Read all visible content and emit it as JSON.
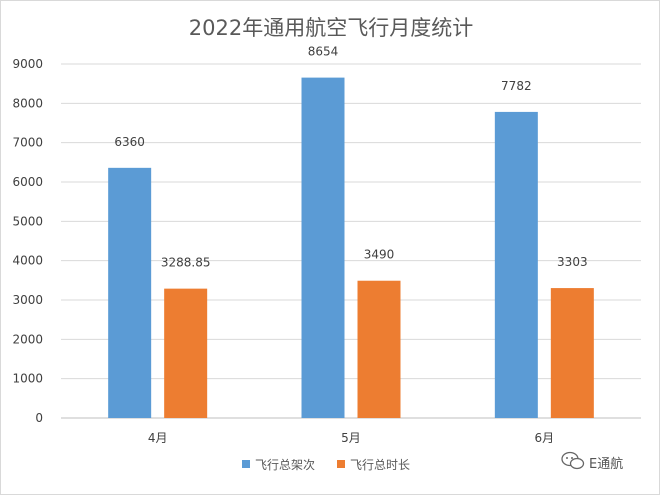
{
  "chart_data": {
    "type": "bar",
    "title": "2022年通用航空飞行月度统计",
    "categories": [
      "4月",
      "5月",
      "6月"
    ],
    "series": [
      {
        "name": "飞行总架次",
        "values": [
          6360,
          8654,
          7782
        ],
        "labels": [
          "6360",
          "8654",
          "7782"
        ],
        "color": "#5b9bd5"
      },
      {
        "name": "飞行总时长",
        "values": [
          3288.85,
          3490,
          3303
        ],
        "labels": [
          "3288.85",
          "3490",
          "3303"
        ],
        "color": "#ed7d31"
      }
    ],
    "ylim": [
      0,
      9000
    ],
    "yticks": [
      "0",
      "1000",
      "2000",
      "3000",
      "4000",
      "5000",
      "6000",
      "7000",
      "8000",
      "9000"
    ],
    "grid": true,
    "legend_position": "bottom"
  },
  "watermark": {
    "text": "E通航",
    "icon": "wechat-icon"
  },
  "colors": {
    "gridline": "#d9d9d9",
    "axis": "#bfbfbf",
    "text": "#404040"
  }
}
